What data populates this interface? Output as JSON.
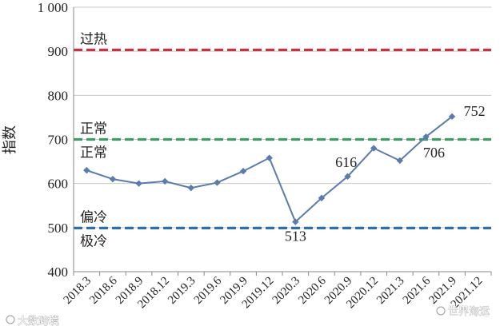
{
  "chart_data": {
    "type": "line",
    "ylabel": "指数",
    "ylim": [
      400,
      1000
    ],
    "yticks": [
      {
        "value": 400,
        "label": "400"
      },
      {
        "value": 500,
        "label": "500"
      },
      {
        "value": 600,
        "label": "600"
      },
      {
        "value": 700,
        "label": "700"
      },
      {
        "value": 800,
        "label": "800"
      },
      {
        "value": 900,
        "label": "900"
      },
      {
        "value": 1000,
        "label": "1 000"
      }
    ],
    "categories": [
      "2018.3",
      "2018.6",
      "2018.9",
      "2018.12",
      "2019.3",
      "2019.6",
      "2019.9",
      "2019.12",
      "2020.3",
      "2020.6",
      "2020.9",
      "2020.12",
      "2021.3",
      "2021.6",
      "2021.9",
      "2021.12"
    ],
    "series": [
      {
        "values": [
          630,
          610,
          600,
          605,
          590,
          602,
          628,
          658,
          513,
          567,
          616,
          680,
          652,
          706,
          752,
          null
        ]
      }
    ],
    "data_labels": [
      {
        "index": 8,
        "text": "513"
      },
      {
        "index": 10,
        "text": "616"
      },
      {
        "index": 13,
        "text": "706"
      },
      {
        "index": 14,
        "text": "752"
      }
    ],
    "reference_lines": [
      {
        "value": 903,
        "color": "#c8333f",
        "labels": [
          {
            "text": "过热",
            "side": "above"
          }
        ]
      },
      {
        "value": 700,
        "color": "#3f9a63",
        "labels": [
          {
            "text": "正常",
            "side": "above"
          },
          {
            "text": "正常",
            "side": "below"
          }
        ]
      },
      {
        "value": 499,
        "color": "#2f6fa8",
        "labels": [
          {
            "text": "偏冷",
            "side": "above"
          },
          {
            "text": "极冷",
            "side": "below"
          }
        ]
      }
    ],
    "grid": true,
    "line_color": "#5b7bad"
  },
  "watermarks": [
    "大数跨境",
    "世界海运"
  ]
}
